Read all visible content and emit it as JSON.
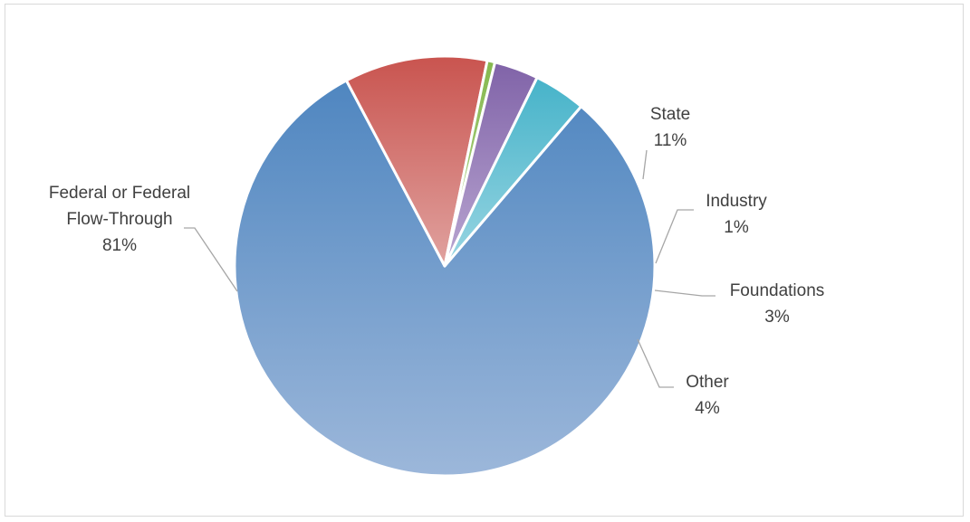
{
  "chart_data": {
    "type": "pie",
    "title": "",
    "legend": "none",
    "slices": [
      {
        "label_lines": [
          "Federal or Federal",
          "Flow-Through"
        ],
        "percent_label": "81%",
        "value": 81,
        "color_top": "#4f86c0",
        "color_bottom": "#9cb7da"
      },
      {
        "label_lines": [
          "State"
        ],
        "percent_label": "11%",
        "value": 11,
        "color_top": "#c9544f",
        "color_bottom": "#e0a29f"
      },
      {
        "label_lines": [
          "Industry"
        ],
        "percent_label": "1%",
        "value": 0.6,
        "color_top": "#86b84f",
        "color_bottom": "#b3d68f"
      },
      {
        "label_lines": [
          "Foundations"
        ],
        "percent_label": "3%",
        "value": 3.4,
        "color_top": "#8063a8",
        "color_bottom": "#b9a6d1"
      },
      {
        "label_lines": [
          "Other"
        ],
        "percent_label": "4%",
        "value": 4,
        "color_top": "#46b3c9",
        "color_bottom": "#98d5e2"
      }
    ]
  }
}
